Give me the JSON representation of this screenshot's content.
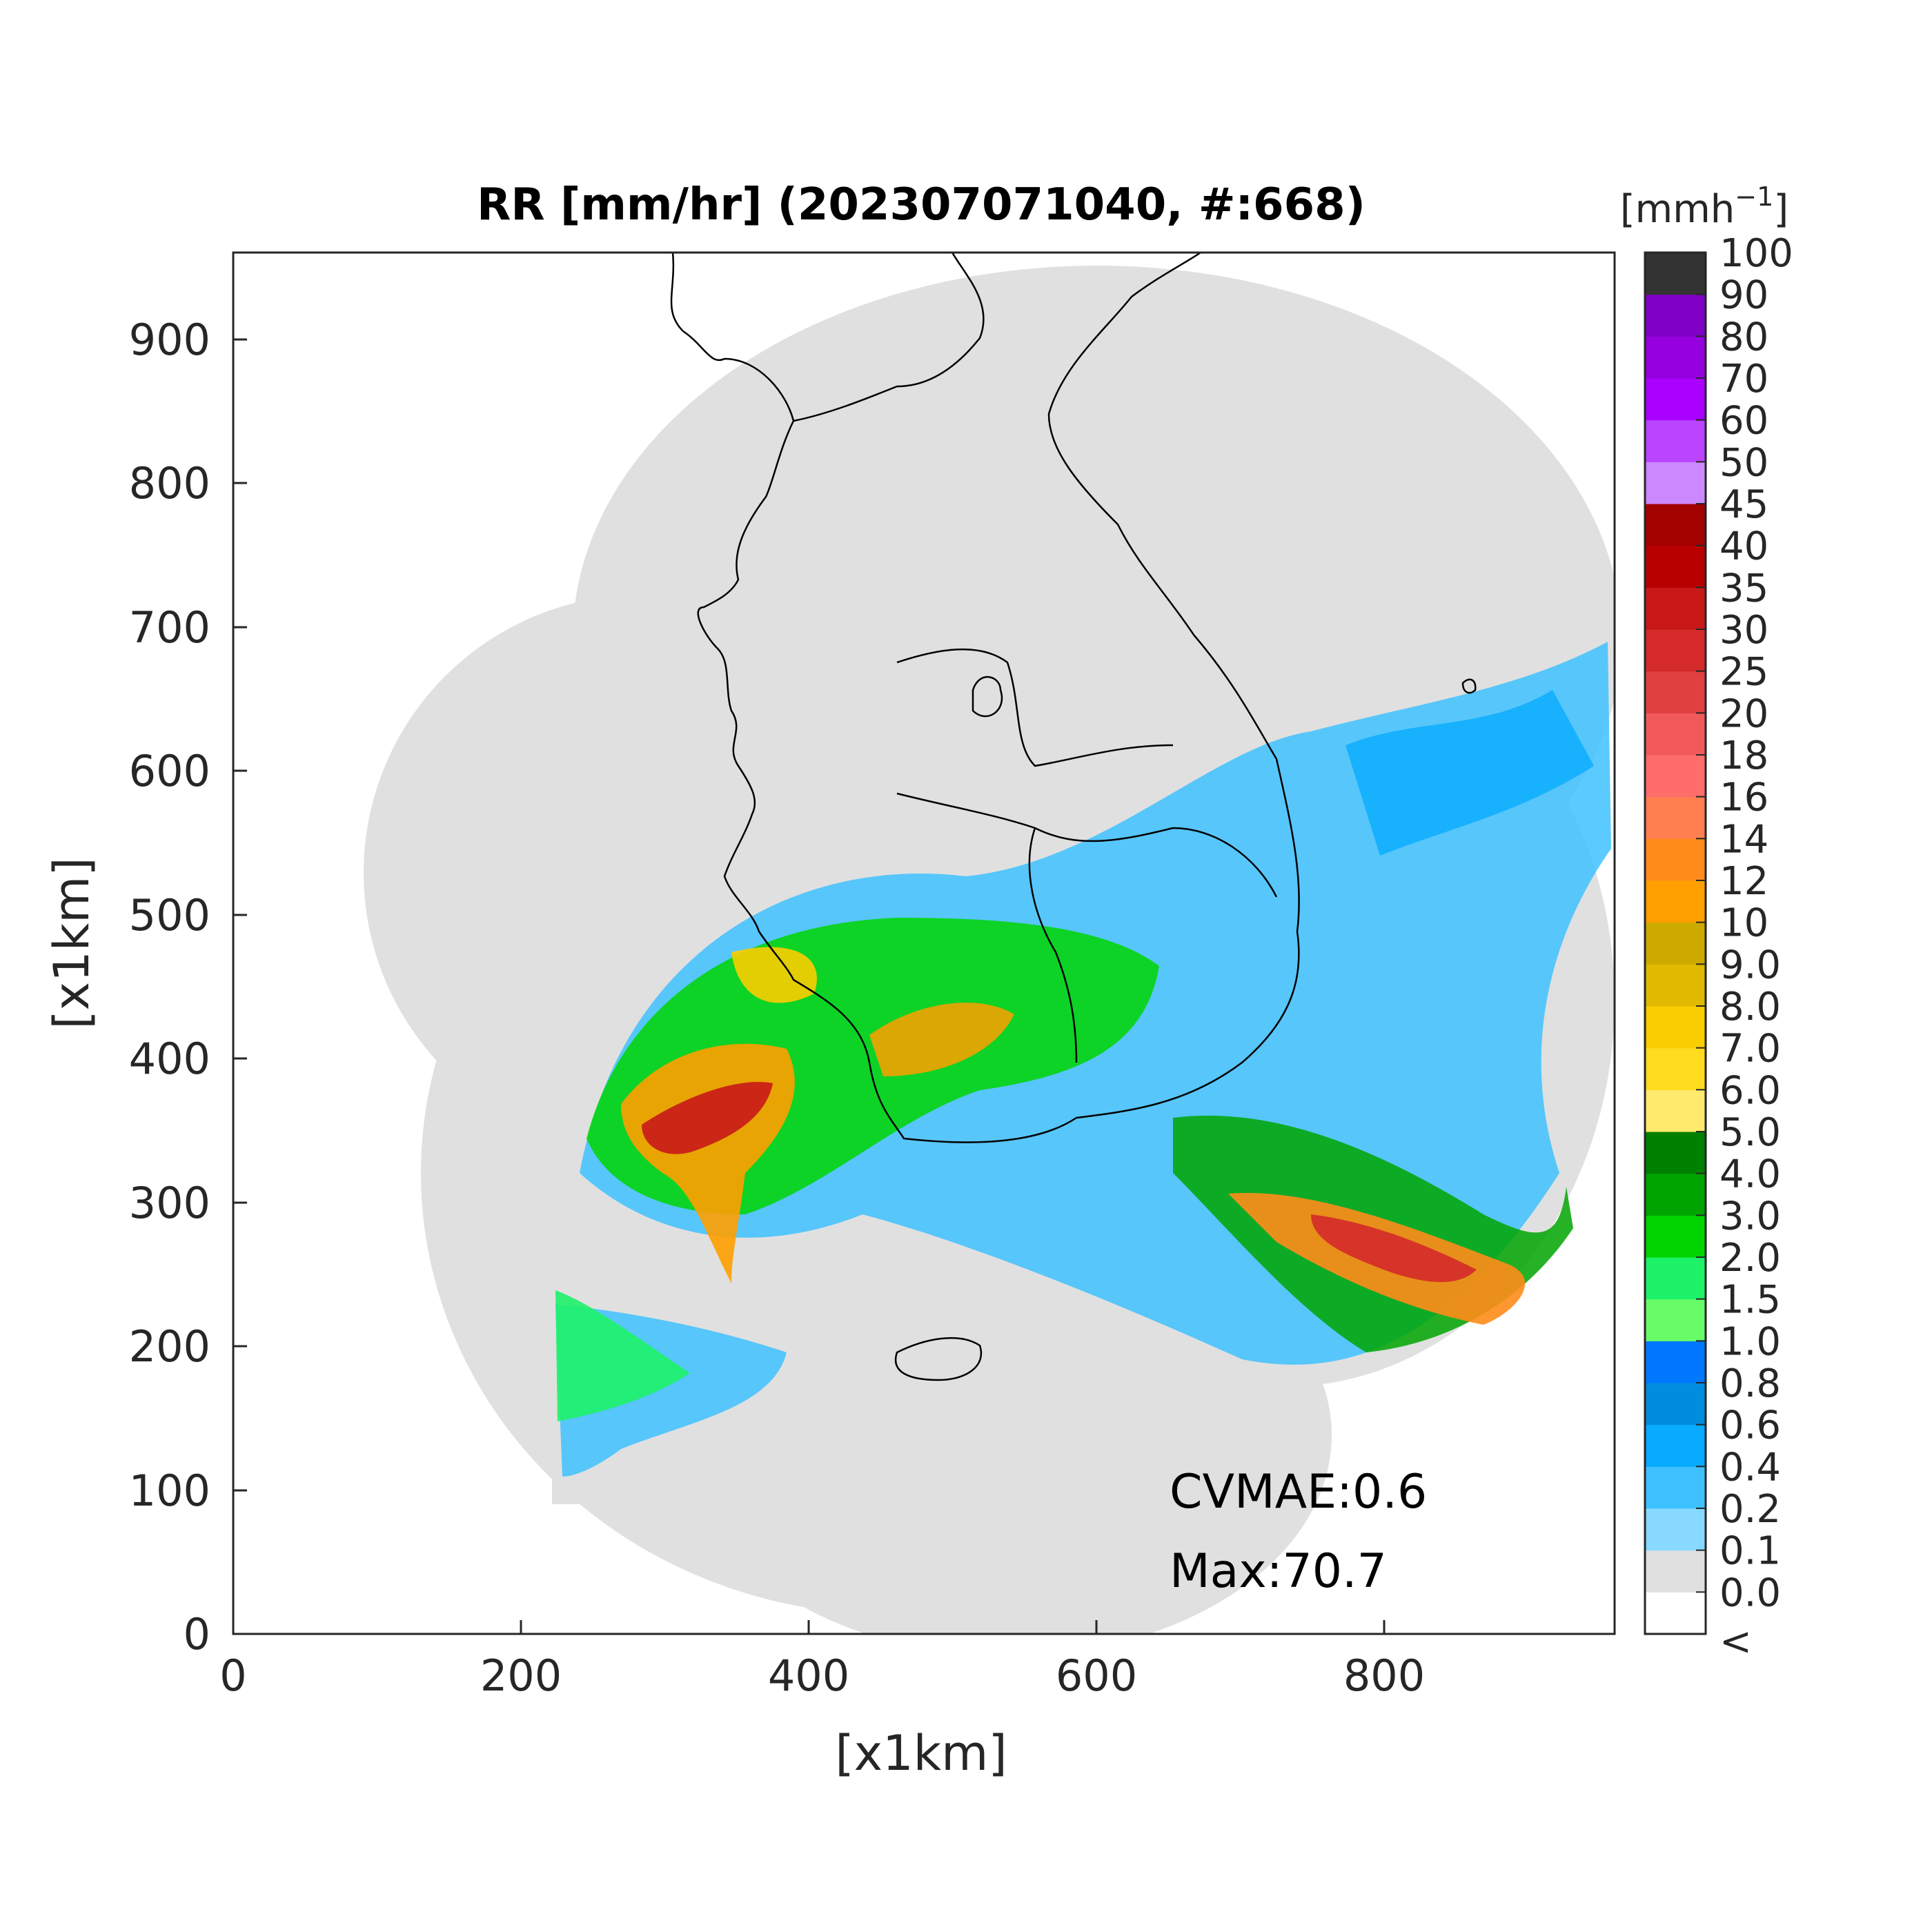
{
  "title": "RR [mm/hr] (202307071040, #:668)",
  "x_axis": {
    "label": "[x1km]",
    "ticks": [
      "0",
      "200",
      "400",
      "600",
      "800"
    ],
    "range": [
      0,
      960
    ]
  },
  "y_axis": {
    "label": "[x1km]",
    "ticks": [
      "0",
      "100",
      "200",
      "300",
      "400",
      "500",
      "600",
      "700",
      "800",
      "900"
    ],
    "range": [
      0,
      960
    ]
  },
  "annotations": {
    "cvmae": "CVMAE:0.6",
    "max": "Max:70.7"
  },
  "colorbar": {
    "unit_base": "[mmh",
    "unit_exp": "−1",
    "unit_close": "]",
    "labels": [
      "<",
      "0.0",
      "0.1",
      "0.2",
      "0.4",
      "0.6",
      "0.8",
      "1.0",
      "1.5",
      "2.0",
      "3.0",
      "4.0",
      "5.0",
      "6.0",
      "7.0",
      "8.0",
      "9.0",
      "10",
      "12",
      "14",
      "16",
      "18",
      "20",
      "25",
      "30",
      "35",
      "40",
      "45",
      "50",
      "60",
      "70",
      "80",
      "90",
      "100"
    ],
    "colors": [
      "#ffffff",
      "#e0e0e0",
      "#87d9ff",
      "#3ec1ff",
      "#07abff",
      "#008dde",
      "#0077ff",
      "#69fc69",
      "#1ef269",
      "#00d500",
      "#00a400",
      "#008000",
      "#ffea6e",
      "#ffdc1f",
      "#f9cd00",
      "#e0b900",
      "#ccaa00",
      "#ff9f00",
      "#ff8c1a",
      "#ff7f50",
      "#ff6c6c",
      "#f25a5a",
      "#e04040",
      "#d42a2a",
      "#c81818",
      "#b80000",
      "#a30000",
      "#cc88ff",
      "#bb44ff",
      "#aa00ff",
      "#9600e0",
      "#8000c8",
      "#333333"
    ]
  },
  "map": {
    "background": "#e0e0e0",
    "land_boundaries": "Korean peninsula outline with provincial borders, Jeju island",
    "coverage": "merged radar composite domain (grey = 0 mm/hr)"
  }
}
